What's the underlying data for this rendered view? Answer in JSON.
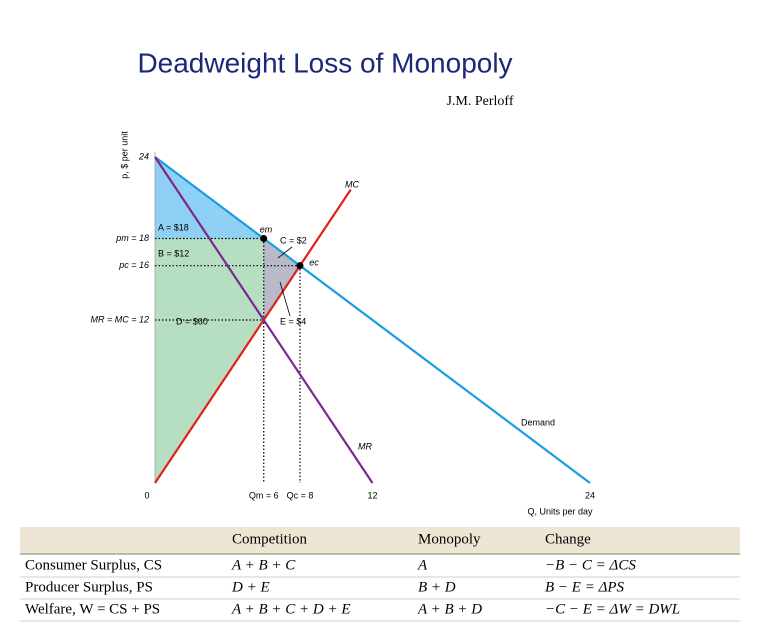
{
  "chart_data": {
    "type": "line",
    "title": "Deadweight Loss of Monopoly",
    "subtitle": "J.M. Perloff",
    "ylabel": "p, $ per unit",
    "xlabel": "Q, Units per day",
    "xlim": [
      0,
      24
    ],
    "ylim": [
      0,
      24
    ],
    "xticks": [
      0,
      {
        "value": 6,
        "label": "Qm = 6"
      },
      {
        "value": 8,
        "label": "Qc = 8"
      },
      12,
      24
    ],
    "yticks": [
      {
        "value": 12,
        "label": "MR = MC = 12"
      },
      {
        "value": 16,
        "label": "pc = 16"
      },
      {
        "value": 18,
        "label": "pm = 18"
      },
      24
    ],
    "series": [
      {
        "name": "Demand",
        "color": "#1b9be0",
        "x": [
          0,
          24
        ],
        "values": [
          24,
          0
        ]
      },
      {
        "name": "MC",
        "color": "#e3201b",
        "x": [
          0,
          10.8
        ],
        "values": [
          0,
          21.6
        ]
      },
      {
        "name": "MR",
        "color": "#7b2a8c",
        "x": [
          0,
          12
        ],
        "values": [
          24,
          0
        ]
      }
    ],
    "points": [
      {
        "label": "em",
        "x": 6,
        "y": 18
      },
      {
        "label": "ec",
        "x": 8,
        "y": 16
      }
    ],
    "annotations": [
      "A = $18",
      "B = $12",
      "C = $2",
      "D = $60",
      "E = $4"
    ]
  },
  "table": {
    "columns": [
      "Competition",
      "Monopoly",
      "Change"
    ],
    "rows": [
      {
        "label": "Consumer Surplus, CS",
        "cells": [
          "A + B + C",
          "A",
          "−B − C = ΔCS"
        ]
      },
      {
        "label": "Producer Surplus, PS",
        "cells": [
          "D + E",
          "B + D",
          "B − E = ΔPS"
        ]
      },
      {
        "label": "Welfare, W = CS + PS",
        "cells": [
          "A + B + C + D + E",
          "A + B + D",
          "−C − E = ΔW = DWL"
        ]
      }
    ]
  }
}
